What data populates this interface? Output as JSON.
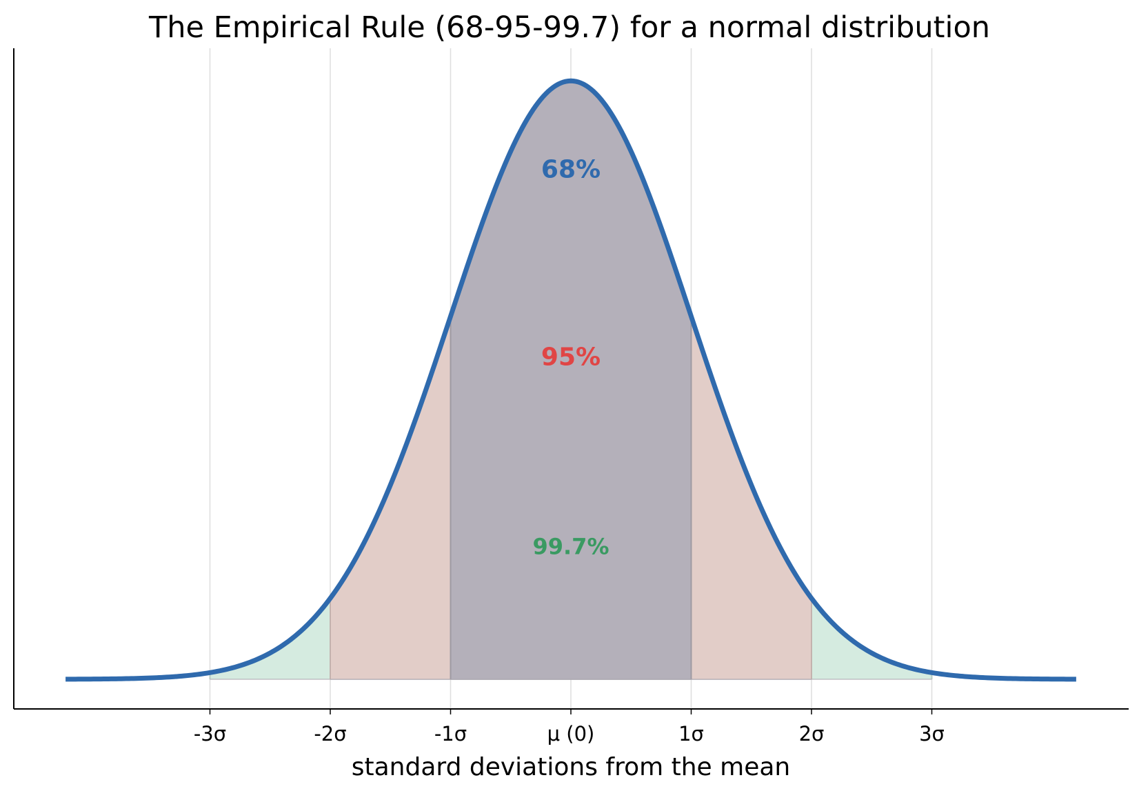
{
  "chart_data": {
    "type": "area",
    "title": "The Empirical Rule (68-95-99.7) for a normal distribution",
    "xlabel": "standard deviations from the mean",
    "ylabel": "",
    "xlim": [
      -4.2,
      4.2
    ],
    "curve": {
      "mean": 0,
      "sd": 1,
      "color": "#2f6aad"
    },
    "ticks": [
      {
        "value": -3,
        "label": "-3σ"
      },
      {
        "value": -2,
        "label": "-2σ"
      },
      {
        "value": -1,
        "label": "-1σ"
      },
      {
        "value": 0,
        "label": "μ (0)"
      },
      {
        "value": 1,
        "label": "1σ"
      },
      {
        "value": 2,
        "label": "2σ"
      },
      {
        "value": 3,
        "label": "3σ"
      }
    ],
    "grid": "vertical",
    "bands": [
      {
        "from": -3,
        "to": 3,
        "color": "#d5ebe0",
        "label": "99.7%",
        "label_color": "#3a9a62",
        "label_density": 0.089
      },
      {
        "from": -2,
        "to": 2,
        "color": "#e2cdc8",
        "label": "95%",
        "label_color": "#e04545",
        "label_density": 0.215
      },
      {
        "from": -1,
        "to": 1,
        "color": "#b4b0ba",
        "label": "68%",
        "label_color": "#2f6aad",
        "label_density": 0.34
      }
    ]
  }
}
